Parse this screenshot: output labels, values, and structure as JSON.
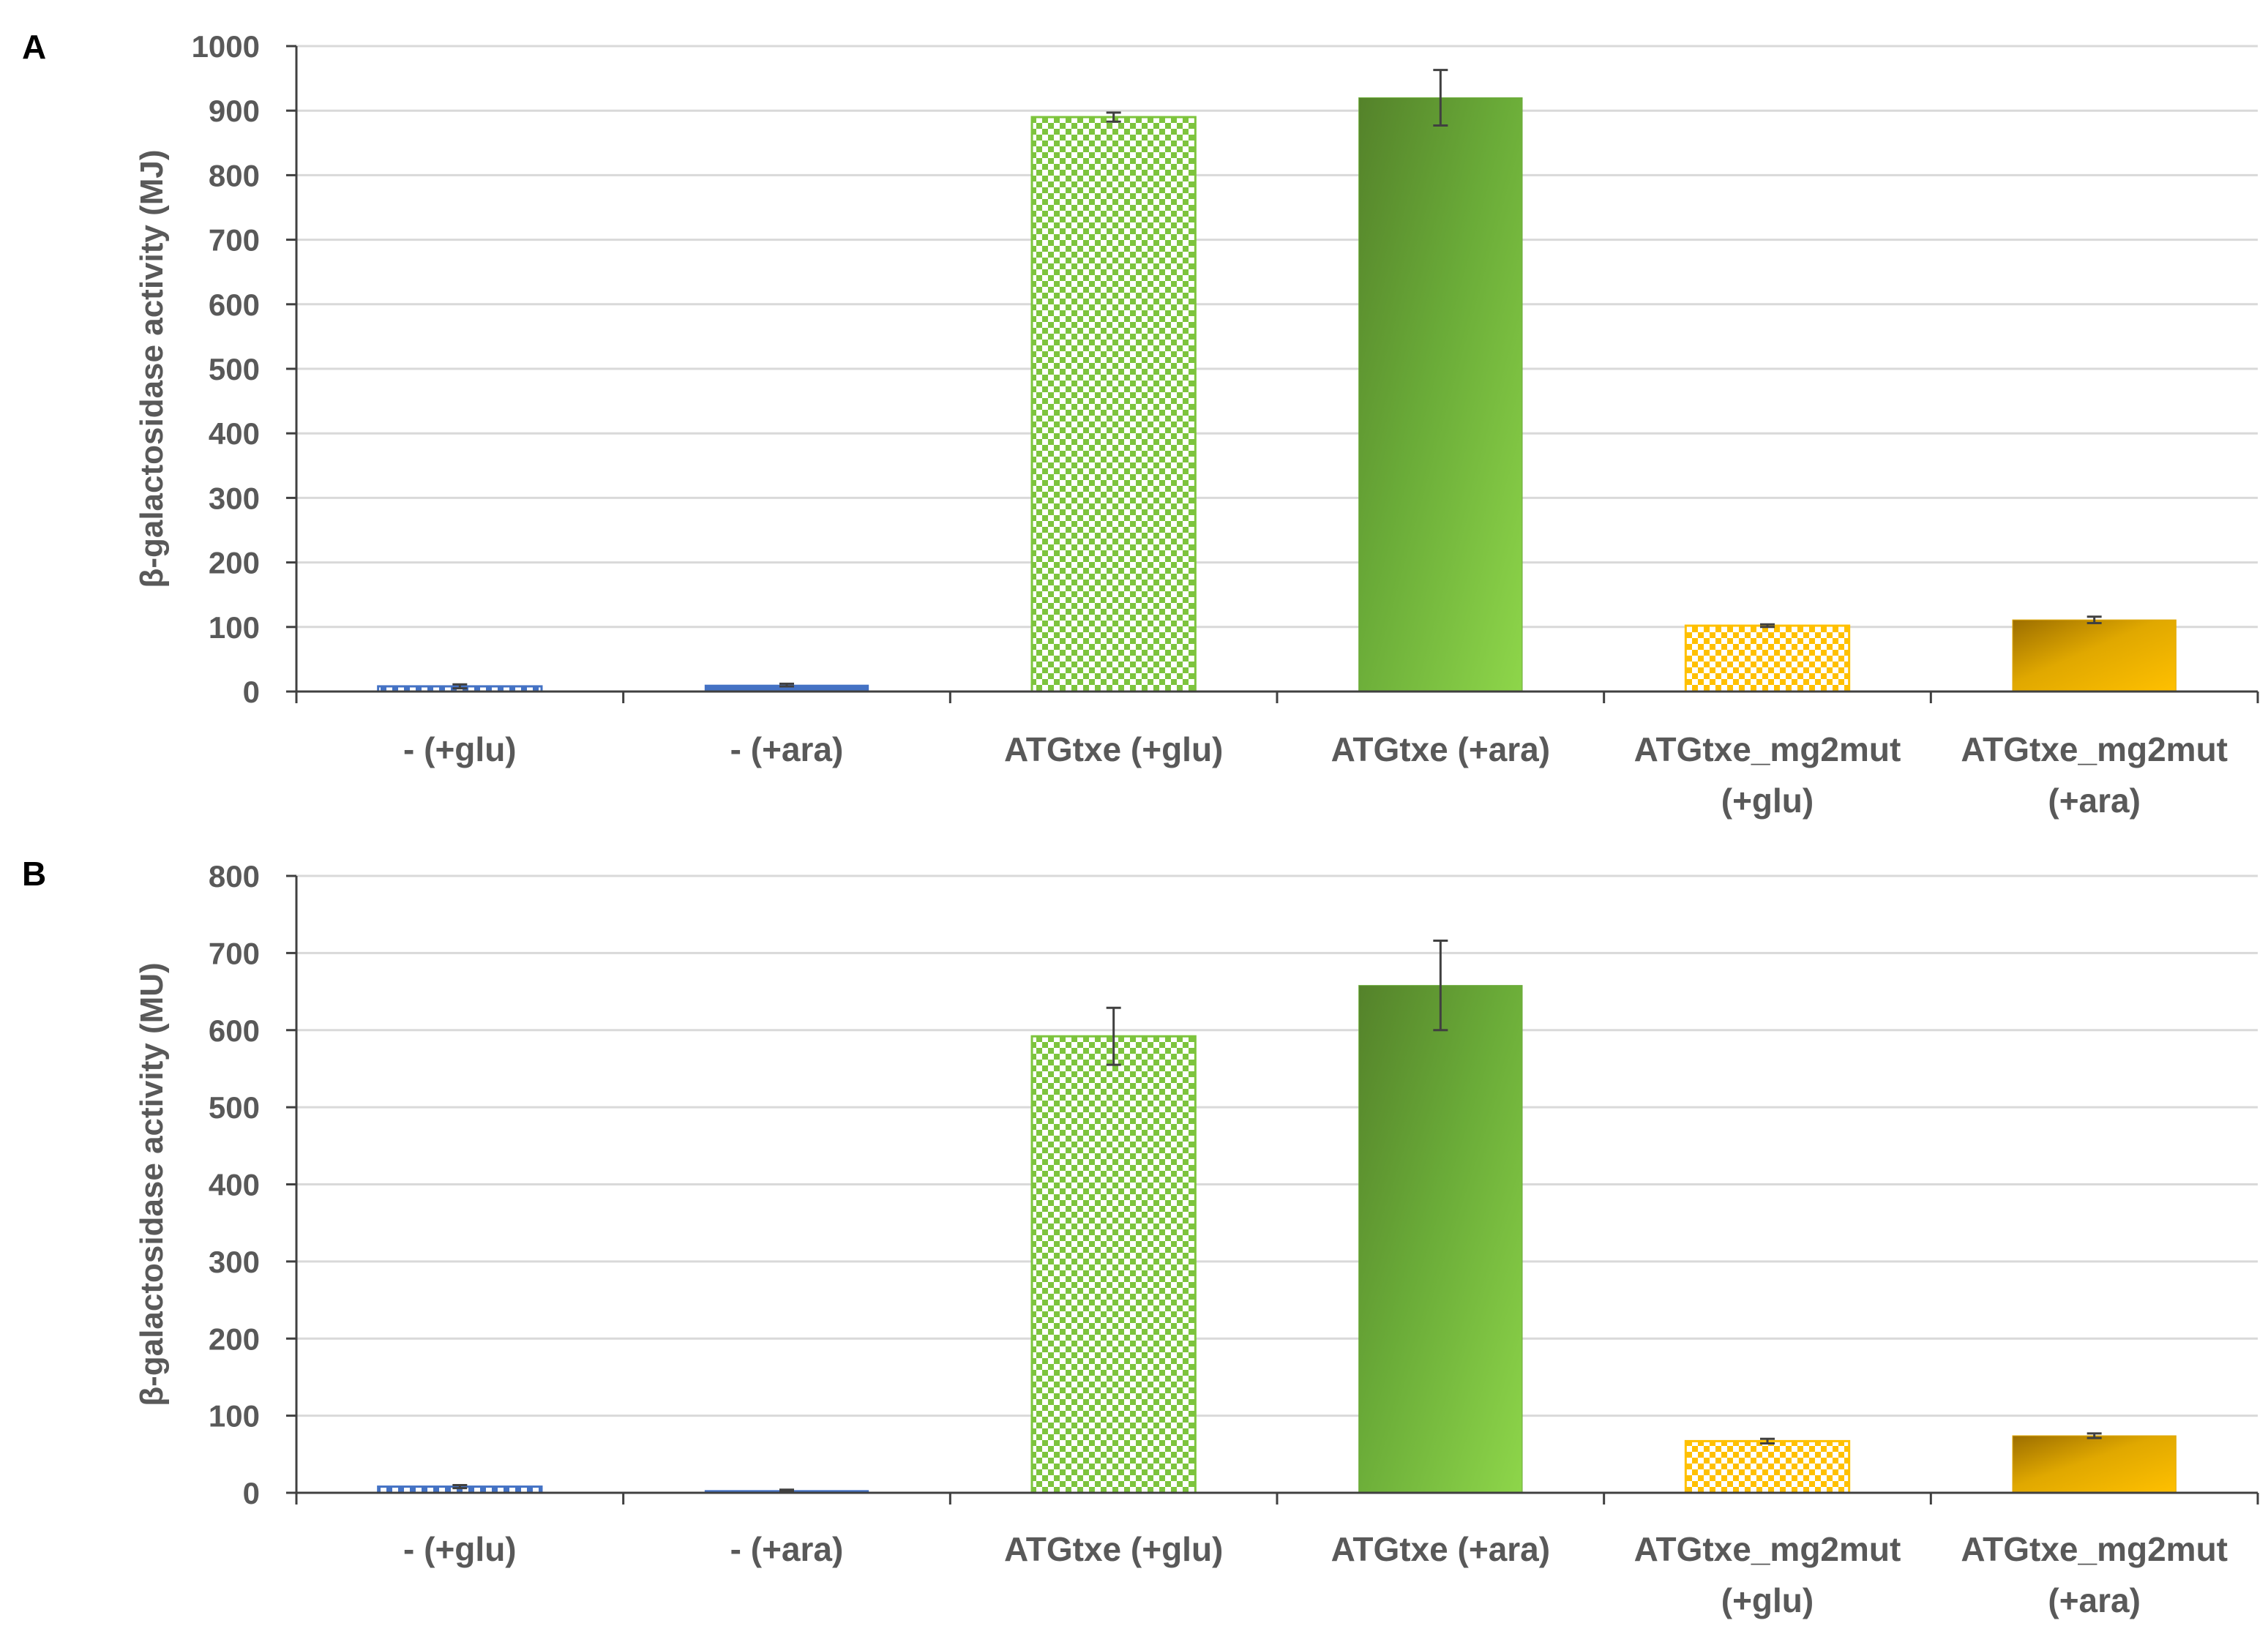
{
  "chart_data": [
    {
      "panel_label": "A",
      "type": "bar",
      "ylabel": "β-galactosidase activity (MJ)",
      "ylim": [
        0,
        1000
      ],
      "yticks": [
        0,
        100,
        200,
        300,
        400,
        500,
        600,
        700,
        800,
        900,
        1000
      ],
      "categories": [
        [
          "- (+glu)"
        ],
        [
          "- (+ara)"
        ],
        [
          "ATGtxe (+glu)"
        ],
        [
          "ATGtxe (+ara)"
        ],
        [
          "ATGtxe_mg2mut",
          "(+glu)"
        ],
        [
          "ATGtxe_mg2mut",
          "(+ara)"
        ]
      ],
      "values": [
        8,
        10,
        890,
        920,
        102,
        111
      ],
      "errors": [
        3,
        2,
        7,
        43,
        2,
        5
      ],
      "grid": true,
      "legend": "none",
      "bar_styles": [
        {
          "fill": "checker",
          "color": "#4472c4"
        },
        {
          "fill": "solid",
          "color": "#4472c4"
        },
        {
          "fill": "checker",
          "color": "#7dc43d"
        },
        {
          "fill": "gradient",
          "color": "#6aab38",
          "color2": "#8ed64a",
          "color3": "#54822a"
        },
        {
          "fill": "checker",
          "color": "#ffc000"
        },
        {
          "fill": "gradient",
          "color": "#e0a800",
          "color2": "#ffc000",
          "color3": "#9c6e00"
        }
      ]
    },
    {
      "panel_label": "B",
      "type": "bar",
      "ylabel": "β-galactosidase activity (MU)",
      "ylim": [
        0,
        800
      ],
      "yticks": [
        0,
        100,
        200,
        300,
        400,
        500,
        600,
        700,
        800
      ],
      "categories": [
        [
          "- (+glu)"
        ],
        [
          "- (+ara)"
        ],
        [
          "ATGtxe (+glu)"
        ],
        [
          "ATGtxe (+ara)"
        ],
        [
          "ATGtxe_mg2mut",
          "(+glu)"
        ],
        [
          "ATGtxe_mg2mut",
          "(+ara)"
        ]
      ],
      "values": [
        8,
        3,
        592,
        658,
        67,
        74
      ],
      "errors": [
        2,
        1,
        37,
        58,
        3,
        3
      ],
      "grid": true,
      "legend": "none",
      "bar_styles": [
        {
          "fill": "checker",
          "color": "#4472c4"
        },
        {
          "fill": "solid",
          "color": "#4472c4"
        },
        {
          "fill": "checker",
          "color": "#7dc43d"
        },
        {
          "fill": "gradient",
          "color": "#6aab38",
          "color2": "#8ed64a",
          "color3": "#54822a"
        },
        {
          "fill": "checker",
          "color": "#ffc000"
        },
        {
          "fill": "gradient",
          "color": "#e0a800",
          "color2": "#ffc000",
          "color3": "#9c6e00"
        }
      ]
    }
  ]
}
